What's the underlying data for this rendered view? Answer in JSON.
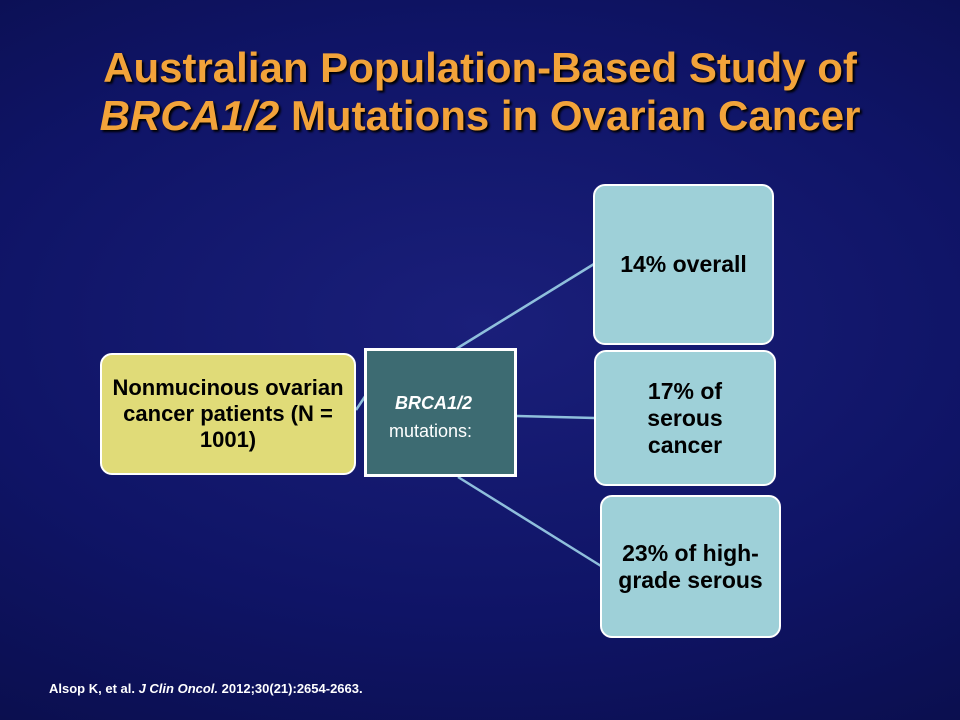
{
  "title": {
    "line1": "Australian Population-Based Study of",
    "line2_italic": "BRCA1/2",
    "line2_rest": " Mutations in Ovarian Cancer"
  },
  "diagram": {
    "source": "Nonmucinous ovarian cancer patients (N = 1001)",
    "center": {
      "gene": "BRCA1/2",
      "label": "mutations:"
    },
    "results": [
      "14% overall",
      "17% of serous cancer",
      "23% of high-grade serous"
    ]
  },
  "citation": {
    "authors": "Alsop K, et al. ",
    "journal": "J Clin Oncol.",
    "details": " 2012;30(21):2654-2663."
  },
  "colors": {
    "title": "#f2a33a",
    "source_box": "#e0db78",
    "center_box": "#3d6b72",
    "result_box": "#9ed0d8",
    "connector": "#8fbfdc"
  }
}
